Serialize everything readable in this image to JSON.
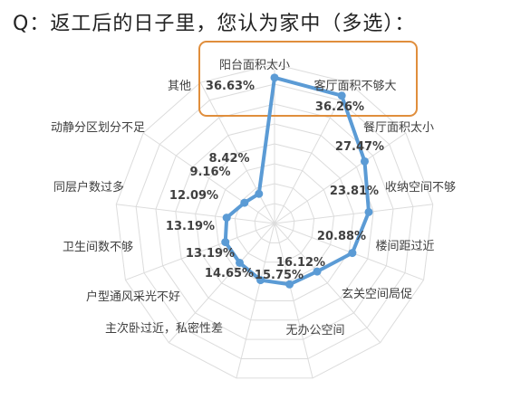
{
  "title": "Q：返工后的日子里，您认为家中（多选）：",
  "colors": {
    "series": "#5B9BD5",
    "highlight_box": "#E08E3C",
    "grid": "#dcdcdc",
    "label": "#404040",
    "value": "#404040"
  },
  "chart_data": {
    "type": "radar",
    "categories": [
      "阳台面积太小",
      "客厅面积不够大",
      "餐厅面积太小",
      "收纳空间不够",
      "楼间距过近",
      "玄关空间局促",
      "无办公空间",
      "主次卧过近，私密性差",
      "户型通风采光不好",
      "卫生间数不够",
      "同层户数过多",
      "动静分区划分不足",
      "其他"
    ],
    "series": [
      {
        "values": [
          36.63,
          36.26,
          27.47,
          23.81,
          20.88,
          16.12,
          15.75,
          14.65,
          13.19,
          13.19,
          12.09,
          9.16,
          8.42
        ]
      }
    ],
    "value_labels": [
      "36.63%",
      "36.26%",
      "27.47%",
      "23.81%",
      "20.88%",
      "16.12%",
      "15.75%",
      "14.65%",
      "13.19%",
      "13.19%",
      "12.09%",
      "9.16%",
      "8.42%"
    ],
    "rmax": 40,
    "grid": true,
    "highlighted_categories": [
      "阳台面积太小",
      "客厅面积不够大"
    ]
  }
}
